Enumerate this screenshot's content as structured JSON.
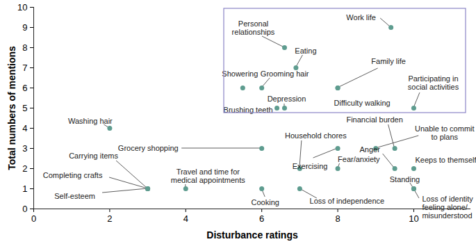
{
  "chart_data": {
    "type": "scatter",
    "x_label": "Disturbance ratings",
    "y_label": "Total numbers of mentions",
    "color": "#5e9c8f",
    "xlim": [
      0,
      11.5
    ],
    "ylim": [
      0,
      10
    ],
    "xticks": [
      0,
      2,
      4,
      6,
      8,
      10
    ],
    "yticks": [
      0,
      1,
      2,
      3,
      4,
      5,
      6,
      7,
      8,
      9,
      10
    ],
    "x": [
      2,
      3,
      3,
      3,
      4,
      6,
      6,
      7,
      8,
      8,
      7,
      9.5,
      9,
      9.5,
      10,
      10,
      10,
      9.4,
      6.6,
      6.9,
      5.5,
      6,
      8,
      8,
      10,
      6.4,
      6.6
    ],
    "values": [
      4,
      1,
      1,
      1,
      1,
      3,
      1,
      2,
      3,
      2,
      1,
      3,
      3,
      2,
      1,
      2,
      1,
      9,
      8,
      7,
      6,
      6,
      6,
      6,
      5,
      5,
      5
    ],
    "annotations": [
      "Washing hair",
      "Carrying items",
      "Completing crafts",
      "Self-esteem",
      "Travel and time for\nmedical appointments",
      "Grocery shopping",
      "Cooking",
      "Household chores",
      "Exercising",
      "Fear/anxiety",
      "Loss of independence",
      "Financial burden",
      "Unable to commit\nto plans",
      "Anger",
      "Standing",
      "Keeps to themself",
      "Loss of identity\nfeeling alone/\nmisunderstood",
      "Work life",
      "Personal\nrelationships",
      "Eating",
      "Showering",
      "Grooming hair",
      "Family life",
      "Difficulty walking",
      "Participating in\nsocial activities",
      "Brushing teeth",
      "Depression"
    ]
  }
}
